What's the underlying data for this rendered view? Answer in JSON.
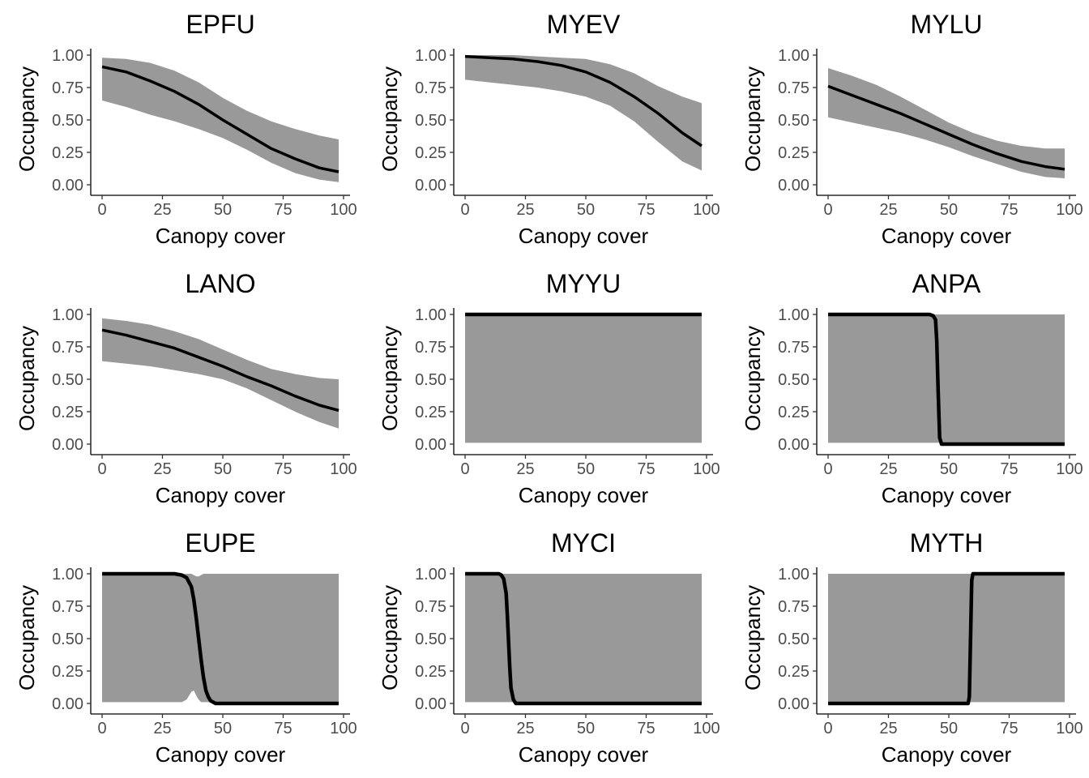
{
  "figure": {
    "layout": "3x3 grid of panels",
    "ribbon_color": "#999999",
    "line_color": "#000000",
    "background": "#ffffff"
  },
  "chart_data": [
    {
      "type": "line",
      "title": "EPFU",
      "xlabel": "Canopy cover",
      "ylabel": "Occupancy",
      "xlim": [
        0,
        98
      ],
      "ylim": [
        0,
        1
      ],
      "x_ticks": [
        "0",
        "25",
        "50",
        "75",
        "100"
      ],
      "y_ticks": [
        "0.00",
        "0.25",
        "0.50",
        "0.75",
        "1.00"
      ],
      "grid": false,
      "series": [
        {
          "x": [
            0,
            10,
            20,
            30,
            40,
            50,
            60,
            70,
            80,
            90,
            98
          ],
          "y": [
            0.91,
            0.87,
            0.8,
            0.72,
            0.62,
            0.5,
            0.39,
            0.28,
            0.2,
            0.13,
            0.1
          ],
          "lower": [
            0.65,
            0.6,
            0.54,
            0.49,
            0.43,
            0.36,
            0.27,
            0.17,
            0.09,
            0.04,
            0.02
          ],
          "upper": [
            0.98,
            0.97,
            0.94,
            0.88,
            0.79,
            0.67,
            0.57,
            0.49,
            0.43,
            0.38,
            0.35
          ]
        }
      ]
    },
    {
      "type": "line",
      "title": "MYEV",
      "xlabel": "Canopy cover",
      "ylabel": "Occupancy",
      "xlim": [
        0,
        98
      ],
      "ylim": [
        0,
        1
      ],
      "x_ticks": [
        "0",
        "25",
        "50",
        "75",
        "100"
      ],
      "y_ticks": [
        "0.00",
        "0.25",
        "0.50",
        "0.75",
        "1.00"
      ],
      "grid": false,
      "series": [
        {
          "x": [
            0,
            10,
            20,
            30,
            40,
            50,
            60,
            70,
            80,
            90,
            98
          ],
          "y": [
            0.99,
            0.98,
            0.97,
            0.95,
            0.92,
            0.87,
            0.79,
            0.68,
            0.55,
            0.4,
            0.3
          ],
          "lower": [
            0.81,
            0.79,
            0.77,
            0.75,
            0.72,
            0.68,
            0.61,
            0.49,
            0.33,
            0.18,
            0.11
          ],
          "upper": [
            1.0,
            1.0,
            1.0,
            0.99,
            0.98,
            0.97,
            0.93,
            0.86,
            0.76,
            0.68,
            0.63
          ]
        }
      ]
    },
    {
      "type": "line",
      "title": "MYLU",
      "xlabel": "Canopy cover",
      "ylabel": "Occupancy",
      "xlim": [
        0,
        98
      ],
      "ylim": [
        0,
        1
      ],
      "x_ticks": [
        "0",
        "25",
        "50",
        "75",
        "100"
      ],
      "y_ticks": [
        "0.00",
        "0.25",
        "0.50",
        "0.75",
        "1.00"
      ],
      "grid": false,
      "series": [
        {
          "x": [
            0,
            10,
            20,
            30,
            40,
            50,
            60,
            70,
            80,
            90,
            98
          ],
          "y": [
            0.76,
            0.69,
            0.62,
            0.55,
            0.47,
            0.39,
            0.31,
            0.24,
            0.18,
            0.14,
            0.12
          ],
          "lower": [
            0.52,
            0.48,
            0.44,
            0.4,
            0.35,
            0.29,
            0.22,
            0.16,
            0.1,
            0.06,
            0.05
          ],
          "upper": [
            0.9,
            0.84,
            0.77,
            0.68,
            0.58,
            0.48,
            0.4,
            0.34,
            0.3,
            0.28,
            0.28
          ]
        }
      ]
    },
    {
      "type": "line",
      "title": "LANO",
      "xlabel": "Canopy cover",
      "ylabel": "Occupancy",
      "xlim": [
        0,
        98
      ],
      "ylim": [
        0,
        1
      ],
      "x_ticks": [
        "0",
        "25",
        "50",
        "75",
        "100"
      ],
      "y_ticks": [
        "0.00",
        "0.25",
        "0.50",
        "0.75",
        "1.00"
      ],
      "grid": false,
      "series": [
        {
          "x": [
            0,
            10,
            20,
            30,
            40,
            50,
            60,
            70,
            80,
            90,
            98
          ],
          "y": [
            0.88,
            0.84,
            0.79,
            0.74,
            0.67,
            0.6,
            0.52,
            0.45,
            0.37,
            0.3,
            0.26
          ],
          "lower": [
            0.64,
            0.62,
            0.6,
            0.57,
            0.54,
            0.5,
            0.43,
            0.34,
            0.25,
            0.17,
            0.12
          ],
          "upper": [
            0.97,
            0.95,
            0.92,
            0.87,
            0.81,
            0.73,
            0.65,
            0.58,
            0.54,
            0.51,
            0.5
          ]
        }
      ]
    },
    {
      "type": "line",
      "title": "MYYU",
      "xlabel": "Canopy cover",
      "ylabel": "Occupancy",
      "xlim": [
        0,
        98
      ],
      "ylim": [
        0,
        1
      ],
      "x_ticks": [
        "0",
        "25",
        "50",
        "75",
        "100"
      ],
      "y_ticks": [
        "0.00",
        "0.25",
        "0.50",
        "0.75",
        "1.00"
      ],
      "grid": false,
      "series": [
        {
          "x": [
            0,
            98
          ],
          "y": [
            1.0,
            1.0
          ],
          "lower": [
            0.01,
            0.01
          ],
          "upper": [
            1.0,
            1.0
          ]
        }
      ]
    },
    {
      "type": "line",
      "title": "ANPA",
      "xlabel": "Canopy cover",
      "ylabel": "Occupancy",
      "xlim": [
        0,
        98
      ],
      "ylim": [
        0,
        1
      ],
      "x_ticks": [
        "0",
        "25",
        "50",
        "75",
        "100"
      ],
      "y_ticks": [
        "0.00",
        "0.25",
        "0.50",
        "0.75",
        "1.00"
      ],
      "grid": false,
      "series": [
        {
          "x": [
            0,
            42,
            43.5,
            44.5,
            45,
            45.6,
            46.2,
            47,
            98
          ],
          "y": [
            1.0,
            1.0,
            0.99,
            0.96,
            0.8,
            0.4,
            0.05,
            0.0,
            0.0
          ],
          "lower": [
            0.01,
            0.01,
            0.01,
            0.01,
            0.01,
            0.01,
            0.01,
            0.01,
            0.01
          ],
          "upper": [
            1.0,
            1.0,
            1.0,
            1.0,
            1.0,
            1.0,
            1.0,
            1.0,
            1.0
          ]
        }
      ]
    },
    {
      "type": "line",
      "title": "EUPE",
      "xlabel": "Canopy cover",
      "ylabel": "Occupancy",
      "xlim": [
        0,
        98
      ],
      "ylim": [
        0,
        1
      ],
      "x_ticks": [
        "0",
        "25",
        "50",
        "75",
        "100"
      ],
      "y_ticks": [
        "0.00",
        "0.25",
        "0.50",
        "0.75",
        "1.00"
      ],
      "grid": false,
      "series": [
        {
          "x": [
            0,
            30,
            33,
            35,
            37,
            38,
            39,
            40,
            41,
            42,
            43,
            44,
            45,
            47,
            50,
            98
          ],
          "y": [
            1.0,
            1.0,
            0.99,
            0.97,
            0.9,
            0.8,
            0.66,
            0.5,
            0.34,
            0.2,
            0.1,
            0.05,
            0.02,
            0.0,
            0.0,
            0.0
          ],
          "lower": [
            0.01,
            0.01,
            0.01,
            0.03,
            0.09,
            0.1,
            0.06,
            0.03,
            0.01,
            0.01,
            0.01,
            0.01,
            0.01,
            0.01,
            0.01,
            0.01
          ],
          "upper": [
            1.0,
            1.0,
            1.0,
            1.0,
            1.0,
            0.99,
            0.98,
            0.98,
            0.99,
            1.0,
            1.0,
            1.0,
            1.0,
            1.0,
            1.0,
            1.0
          ]
        }
      ]
    },
    {
      "type": "line",
      "title": "MYCI",
      "xlabel": "Canopy cover",
      "ylabel": "Occupancy",
      "xlim": [
        0,
        98
      ],
      "ylim": [
        0,
        1
      ],
      "x_ticks": [
        "0",
        "25",
        "50",
        "75",
        "100"
      ],
      "y_ticks": [
        "0.00",
        "0.25",
        "0.50",
        "0.75",
        "1.00"
      ],
      "grid": false,
      "series": [
        {
          "x": [
            0,
            14,
            15,
            16,
            17,
            17.5,
            18,
            18.5,
            19,
            20,
            21,
            98
          ],
          "y": [
            1.0,
            1.0,
            0.99,
            0.96,
            0.85,
            0.68,
            0.48,
            0.28,
            0.12,
            0.03,
            0.0,
            0.0
          ],
          "lower": [
            0.01,
            0.01,
            0.01,
            0.01,
            0.01,
            0.01,
            0.01,
            0.01,
            0.01,
            0.01,
            0.01,
            0.01
          ],
          "upper": [
            1.0,
            1.0,
            1.0,
            1.0,
            1.0,
            1.0,
            1.0,
            1.0,
            1.0,
            1.0,
            1.0,
            1.0
          ]
        }
      ]
    },
    {
      "type": "line",
      "title": "MYTH",
      "xlabel": "Canopy cover",
      "ylabel": "Occupancy",
      "xlim": [
        0,
        98
      ],
      "ylim": [
        0,
        1
      ],
      "x_ticks": [
        "0",
        "25",
        "50",
        "75",
        "100"
      ],
      "y_ticks": [
        "0.00",
        "0.25",
        "0.50",
        "0.75",
        "1.00"
      ],
      "grid": false,
      "series": [
        {
          "x": [
            0,
            58,
            58.5,
            59,
            59.5,
            60,
            98
          ],
          "y": [
            0.0,
            0.0,
            0.05,
            0.5,
            0.95,
            1.0,
            1.0
          ],
          "lower": [
            0.01,
            0.01,
            0.01,
            0.01,
            0.01,
            0.01,
            0.01
          ],
          "upper": [
            1.0,
            1.0,
            1.0,
            1.0,
            1.0,
            1.0,
            1.0
          ]
        }
      ]
    }
  ]
}
